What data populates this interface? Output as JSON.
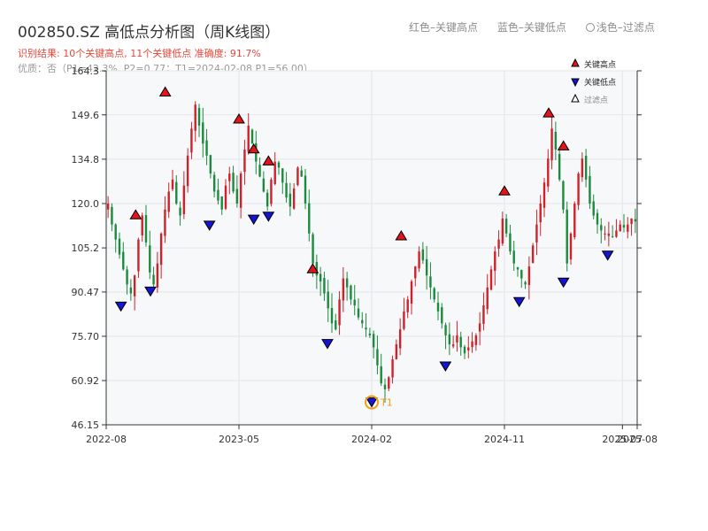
{
  "header": {
    "title": "002850.SZ 高低点分析图（周K线图）",
    "subtitle": "识别结果: 10个关键高点, 11个关键低点  准确度: 91.7%",
    "quality": "优质：否（P1=42.3%, P2=0.77；T1=2024-02-08 P1=56.00）"
  },
  "top_legend": {
    "red": "红色–关键高点",
    "blue": "蓝色–关键低点",
    "light": "浅色–过滤点"
  },
  "colors": {
    "up": "#d0212a",
    "down": "#1b8a3d",
    "high_marker": "#e3141b",
    "low_marker": "#1414d2",
    "t1_marker": "#f39c12",
    "plot_bg": "#f7f8fa",
    "grid": "#e3e5ea"
  },
  "chart_data": {
    "type": "candlestick",
    "y_ticks": [
      "164.3",
      "149.6",
      "134.8",
      "120.0",
      "105.2",
      "90.47",
      "75.70",
      "60.92",
      "46.15"
    ],
    "ylim": [
      46.15,
      164.3
    ],
    "x_ticks": [
      "2022-08",
      "2023-05",
      "2024-02",
      "2024-11",
      "2025-07",
      "2025-08"
    ],
    "xlim": [
      "2022-08",
      "2025-08"
    ],
    "series_close_path": [
      120,
      113,
      108,
      103,
      98,
      93,
      90,
      96,
      108,
      116,
      107,
      97,
      93,
      100,
      110,
      118,
      124,
      128,
      120,
      116,
      126,
      136,
      145,
      153,
      146,
      140,
      136,
      130,
      124,
      121,
      118,
      126,
      130,
      124,
      120,
      130,
      138,
      146,
      140,
      134,
      129,
      124,
      119,
      128,
      134,
      132,
      127,
      122,
      119,
      125,
      132,
      129,
      120,
      110,
      100,
      96,
      94,
      90,
      85,
      80,
      78,
      88,
      95,
      92,
      88,
      86,
      82,
      80,
      78,
      76,
      72,
      66,
      60,
      58,
      62,
      68,
      73,
      78,
      84,
      88,
      94,
      99,
      104,
      101,
      96,
      92,
      88,
      84,
      80,
      76,
      73,
      73,
      76,
      72,
      70,
      72,
      74,
      76,
      80,
      86,
      92,
      98,
      104,
      108,
      115,
      110,
      104,
      100,
      98,
      95,
      93,
      99,
      106,
      113,
      120,
      127,
      135,
      145,
      138,
      128,
      118,
      100,
      110,
      120,
      130,
      135,
      128,
      120,
      116,
      113,
      111,
      110,
      110,
      109,
      111,
      113,
      112,
      113,
      115,
      114
    ],
    "key_highs": [
      {
        "date": "2022-10",
        "price": 114.0
      },
      {
        "date": "2022-12",
        "price": 155.0
      },
      {
        "date": "2023-05",
        "price": 146.0
      },
      {
        "date": "2023-06",
        "price": 136.0
      },
      {
        "date": "2023-07",
        "price": 132.0
      },
      {
        "date": "2023-10",
        "price": 96.0
      },
      {
        "date": "2024-04",
        "price": 107.0
      },
      {
        "date": "2024-11",
        "price": 122.0
      },
      {
        "date": "2025-02",
        "price": 148.0
      },
      {
        "date": "2025-03",
        "price": 137.0
      }
    ],
    "key_lows": [
      {
        "date": "2022-09",
        "price": 88.0
      },
      {
        "date": "2022-11",
        "price": 93.0
      },
      {
        "date": "2023-03",
        "price": 115.0
      },
      {
        "date": "2023-06",
        "price": 117.0
      },
      {
        "date": "2023-07",
        "price": 118.0
      },
      {
        "date": "2023-11",
        "price": 75.5
      },
      {
        "date": "2024-02",
        "price": 56.0
      },
      {
        "date": "2024-07",
        "price": 68.0
      },
      {
        "date": "2024-12",
        "price": 89.5
      },
      {
        "date": "2025-03",
        "price": 96.0
      },
      {
        "date": "2025-06",
        "price": 105.0
      }
    ],
    "annotation": "T1",
    "legend": [
      "关键高点",
      "关键低点",
      "过滤点"
    ],
    "legend_placement": "top-right",
    "grid": true
  }
}
